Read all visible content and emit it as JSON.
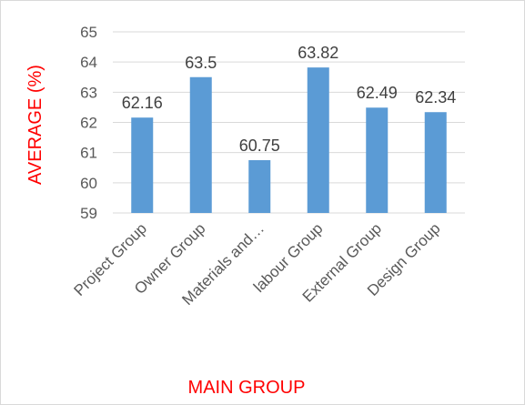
{
  "chart_data": {
    "type": "bar",
    "categories": [
      "Project Group",
      "Owner Group",
      "Materials and…",
      "labour Group",
      "External Group",
      "Design Group"
    ],
    "series": [
      {
        "values": [
          62.16,
          63.5,
          60.75,
          63.82,
          62.49,
          62.34
        ]
      }
    ],
    "data_labels": [
      "62.16",
      "63.5",
      "60.75",
      "63.82",
      "62.49",
      "62.34"
    ],
    "y_ticks": [
      "59",
      "60",
      "61",
      "62",
      "63",
      "64",
      "65"
    ],
    "ylim": [
      59,
      65
    ],
    "xlabel": "MAIN GROUP",
    "ylabel": "AVERAGE (%)",
    "grid": true,
    "legend": "none",
    "colors": {
      "bar": "#5b9bd5",
      "axis_title": "#ff0000",
      "gridline": "#d9d9d9",
      "tick_text": "#595959",
      "data_label": "#404040"
    }
  }
}
